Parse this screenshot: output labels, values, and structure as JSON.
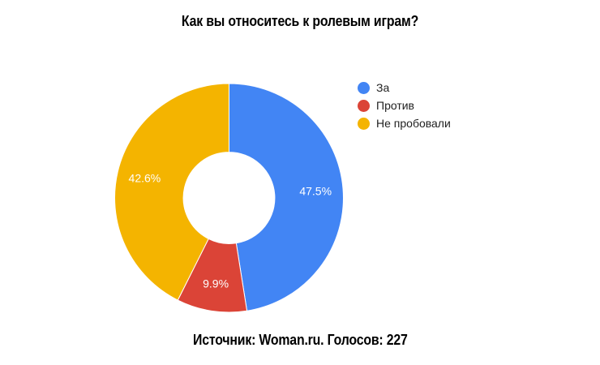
{
  "title": "Как вы относитесь к ролевым играм?",
  "footer": {
    "text": "Источник: Woman.ru. Голосов: 227"
  },
  "legend": {
    "position": "right",
    "items": [
      {
        "label": "За",
        "color": "#4285F4"
      },
      {
        "label": "Против",
        "color": "#DB4437"
      },
      {
        "label": "Не пробовали",
        "color": "#F4B400"
      }
    ]
  },
  "chart_data": {
    "type": "pie",
    "donut": true,
    "title": "Как вы относитесь к ролевым играм?",
    "categories": [
      "За",
      "Против",
      "Не пробовали"
    ],
    "values": [
      47.5,
      9.9,
      42.6
    ],
    "slice_labels": [
      "47.5%",
      "9.9%",
      "42.6%"
    ],
    "colors": [
      "#4285F4",
      "#DB4437",
      "#F4B400"
    ],
    "value_unit": "percent",
    "start_angle_deg": 0,
    "clockwise": true,
    "pie_hole_ratio": 0.4,
    "legend_position": "right",
    "background_color": "#ffffff",
    "label_text_color": "#ffffff",
    "source_note": "Источник: Woman.ru. Голосов: 227",
    "total_votes": 227
  }
}
